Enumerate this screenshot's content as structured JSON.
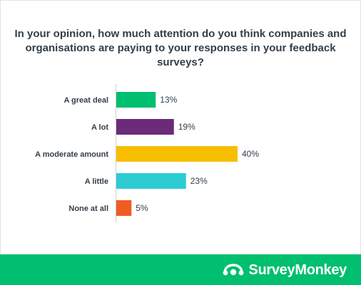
{
  "chart_data": {
    "type": "bar",
    "orientation": "horizontal",
    "title": "In your opinion, how much attention do you think companies and organisations are paying to your responses in your feedback surveys?",
    "categories": [
      "A great deal",
      "A lot",
      "A moderate amount",
      "A little",
      "None at all"
    ],
    "values": [
      13,
      19,
      40,
      23,
      5
    ],
    "value_labels": [
      "13%",
      "19%",
      "40%",
      "23%",
      "5%"
    ],
    "colors": [
      "#00bf6f",
      "#6b2a7a",
      "#f7be00",
      "#2dccd3",
      "#f05b24"
    ],
    "unit": "%",
    "grid": false,
    "legend": "none"
  },
  "footer": {
    "brand_name": "SurveyMonkey",
    "brand_icon": "surveymonkey-logo-icon",
    "background": "#00bf6f"
  }
}
